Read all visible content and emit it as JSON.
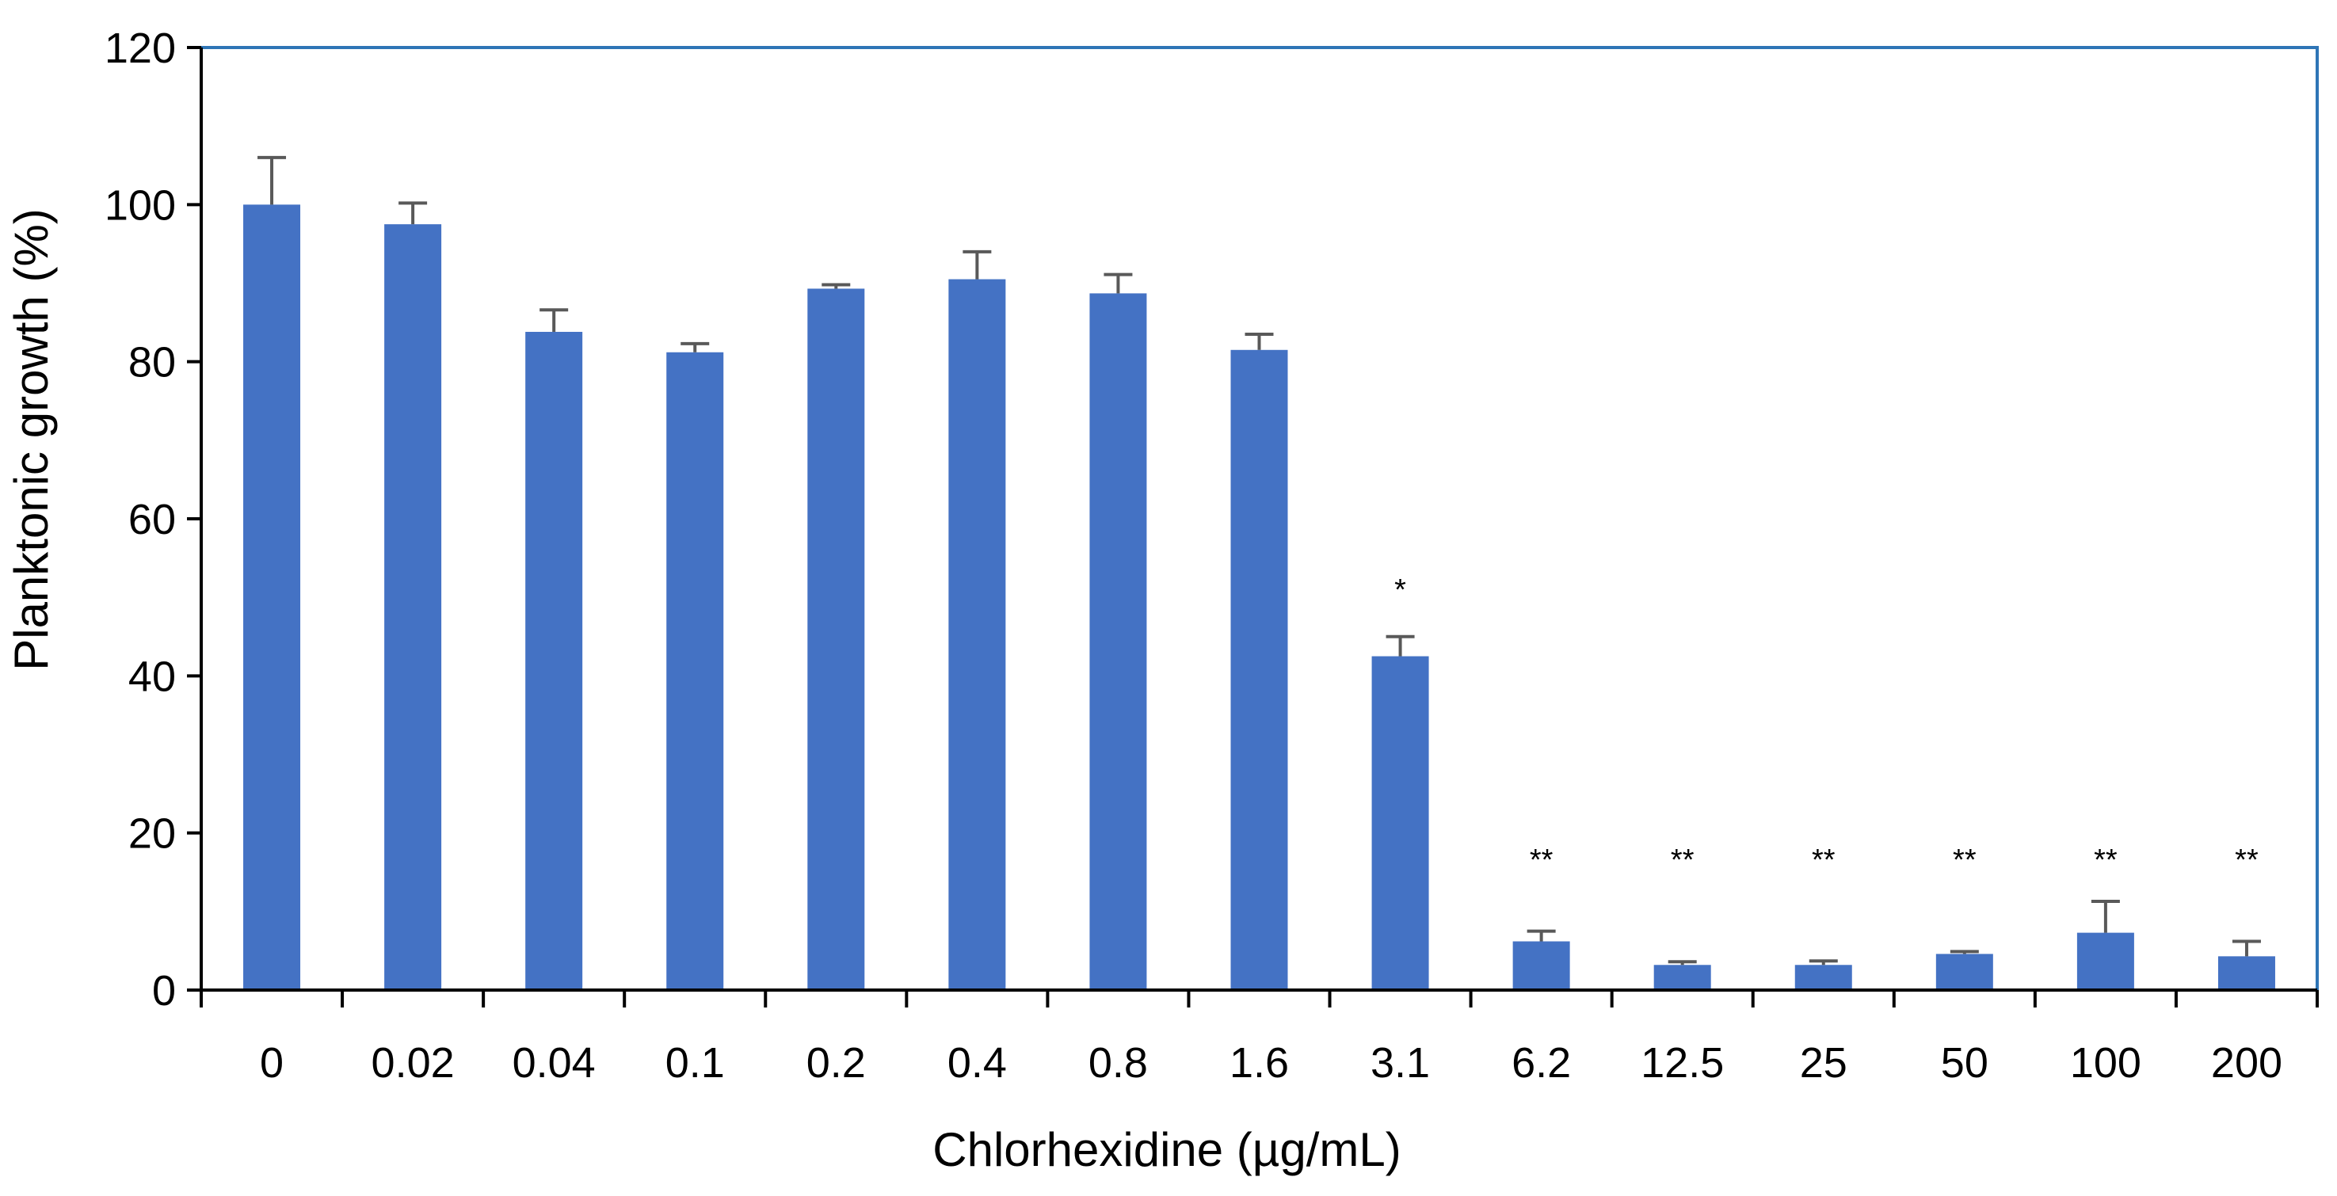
{
  "chart_data": {
    "type": "bar",
    "title": "",
    "xlabel": "Chlorhexidine (µg/mL)",
    "ylabel": "Planktonic growth (%)",
    "ylim": [
      0,
      120
    ],
    "yticks": [
      "0",
      "20",
      "40",
      "60",
      "80",
      "100",
      "120"
    ],
    "grid": false,
    "legend": "none",
    "categories": [
      "0",
      "0.02",
      "0.04",
      "0.1",
      "0.2",
      "0.4",
      "0.8",
      "1.6",
      "3.1",
      "6.2",
      "12.5",
      "25",
      "50",
      "100",
      "200"
    ],
    "values": [
      100,
      97.5,
      83.8,
      81.2,
      89.3,
      90.5,
      88.7,
      81.5,
      42.5,
      6.2,
      3.2,
      3.2,
      4.6,
      7.3,
      4.3
    ],
    "error": [
      6.0,
      2.7,
      2.8,
      1.1,
      0.5,
      3.5,
      2.4,
      2.0,
      2.5,
      1.3,
      0.4,
      0.5,
      0.3,
      4.0,
      1.9
    ],
    "significance": [
      "",
      "",
      "",
      "",
      "",
      "",
      "",
      "",
      "*",
      "**",
      "**",
      "**",
      "**",
      "**",
      "**"
    ],
    "colors": {
      "bar": "#4472C4",
      "error_bar": "#595959",
      "frame": "#2E75B6",
      "axis": "#000000"
    }
  }
}
